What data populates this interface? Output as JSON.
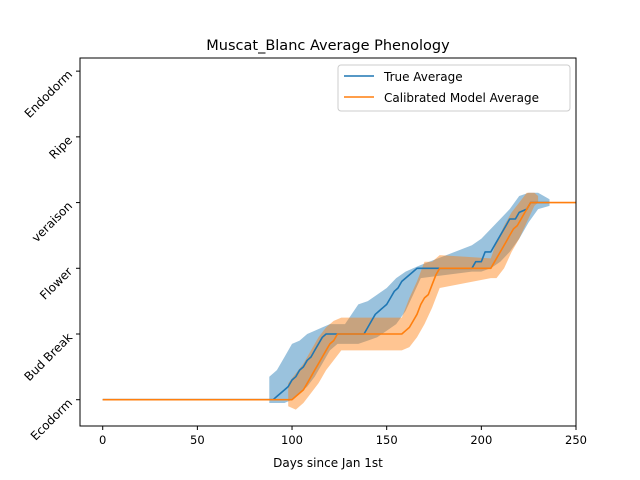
{
  "chart_data": {
    "type": "line",
    "title": "Muscat_Blanc Average Phenology",
    "xlabel": "Days since Jan 1st",
    "ylabel": "",
    "xlim": [
      -12,
      250
    ],
    "ylim": [
      -0.4,
      5.2
    ],
    "xticks": [
      0,
      50,
      100,
      150,
      200,
      250
    ],
    "yticks": [
      {
        "value": 0,
        "label": "Ecodorm"
      },
      {
        "value": 1,
        "label": "Bud Break"
      },
      {
        "value": 2,
        "label": "Flower"
      },
      {
        "value": 3,
        "label": "veraison"
      },
      {
        "value": 4,
        "label": "Ripe"
      },
      {
        "value": 5,
        "label": "Endodorm"
      }
    ],
    "grid": false,
    "legend": "top-right",
    "series": [
      {
        "name": "True Average",
        "color": "#1f77b4",
        "points": [
          [
            0,
            0
          ],
          [
            90,
            0
          ],
          [
            92,
            0.05
          ],
          [
            94,
            0.1
          ],
          [
            96,
            0.15
          ],
          [
            98,
            0.2
          ],
          [
            100,
            0.3
          ],
          [
            102,
            0.35
          ],
          [
            104,
            0.45
          ],
          [
            106,
            0.5
          ],
          [
            108,
            0.6
          ],
          [
            110,
            0.65
          ],
          [
            112,
            0.75
          ],
          [
            114,
            0.85
          ],
          [
            116,
            0.95
          ],
          [
            118,
            1.0
          ],
          [
            120,
            1.0
          ],
          [
            138,
            1.0
          ],
          [
            140,
            1.1
          ],
          [
            142,
            1.2
          ],
          [
            144,
            1.3
          ],
          [
            146,
            1.35
          ],
          [
            148,
            1.4
          ],
          [
            150,
            1.45
          ],
          [
            152,
            1.55
          ],
          [
            154,
            1.65
          ],
          [
            156,
            1.7
          ],
          [
            158,
            1.8
          ],
          [
            160,
            1.85
          ],
          [
            162,
            1.9
          ],
          [
            164,
            1.95
          ],
          [
            166,
            2.0
          ],
          [
            195,
            2.0
          ],
          [
            197,
            2.1
          ],
          [
            200,
            2.1
          ],
          [
            202,
            2.25
          ],
          [
            205,
            2.25
          ],
          [
            207,
            2.35
          ],
          [
            209,
            2.45
          ],
          [
            211,
            2.55
          ],
          [
            213,
            2.65
          ],
          [
            215,
            2.75
          ],
          [
            218,
            2.75
          ],
          [
            220,
            2.85
          ],
          [
            224,
            2.9
          ],
          [
            226,
            3.0
          ],
          [
            236,
            3.0
          ]
        ],
        "band": {
          "lower": [
            [
              88,
              -0.05
            ],
            [
              92,
              -0.05
            ],
            [
              96,
              -0.05
            ],
            [
              100,
              0.0
            ],
            [
              104,
              0.1
            ],
            [
              108,
              0.2
            ],
            [
              112,
              0.35
            ],
            [
              116,
              0.55
            ],
            [
              120,
              0.75
            ],
            [
              124,
              0.85
            ],
            [
              128,
              0.85
            ],
            [
              135,
              0.85
            ],
            [
              140,
              0.9
            ],
            [
              145,
              0.95
            ],
            [
              150,
              1.05
            ],
            [
              155,
              1.15
            ],
            [
              160,
              1.35
            ],
            [
              164,
              1.6
            ],
            [
              168,
              1.85
            ],
            [
              195,
              1.95
            ],
            [
              200,
              1.95
            ],
            [
              205,
              2.0
            ],
            [
              210,
              2.1
            ],
            [
              215,
              2.25
            ],
            [
              220,
              2.45
            ],
            [
              225,
              2.7
            ],
            [
              230,
              2.9
            ],
            [
              236,
              2.95
            ]
          ],
          "upper": [
            [
              88,
              0.35
            ],
            [
              92,
              0.45
            ],
            [
              96,
              0.65
            ],
            [
              100,
              0.85
            ],
            [
              104,
              0.9
            ],
            [
              108,
              1.0
            ],
            [
              112,
              1.05
            ],
            [
              116,
              1.1
            ],
            [
              120,
              1.15
            ],
            [
              124,
              1.15
            ],
            [
              128,
              1.15
            ],
            [
              135,
              1.45
            ],
            [
              140,
              1.5
            ],
            [
              145,
              1.6
            ],
            [
              150,
              1.7
            ],
            [
              155,
              1.85
            ],
            [
              160,
              1.95
            ],
            [
              164,
              2.0
            ],
            [
              168,
              2.05
            ],
            [
              195,
              2.35
            ],
            [
              200,
              2.45
            ],
            [
              205,
              2.6
            ],
            [
              210,
              2.75
            ],
            [
              215,
              2.9
            ],
            [
              220,
              3.1
            ],
            [
              225,
              3.15
            ],
            [
              230,
              3.15
            ],
            [
              236,
              3.05
            ]
          ]
        }
      },
      {
        "name": "Calibrated Model Average",
        "color": "#ff7f0e",
        "points": [
          [
            0,
            0
          ],
          [
            100,
            0
          ],
          [
            102,
            0.05
          ],
          [
            104,
            0.1
          ],
          [
            106,
            0.15
          ],
          [
            108,
            0.25
          ],
          [
            110,
            0.35
          ],
          [
            112,
            0.45
          ],
          [
            114,
            0.55
          ],
          [
            116,
            0.65
          ],
          [
            118,
            0.75
          ],
          [
            120,
            0.85
          ],
          [
            122,
            0.9
          ],
          [
            124,
            1.0
          ],
          [
            150,
            1.0
          ],
          [
            158,
            1.0
          ],
          [
            160,
            1.05
          ],
          [
            162,
            1.1
          ],
          [
            164,
            1.2
          ],
          [
            166,
            1.3
          ],
          [
            168,
            1.45
          ],
          [
            170,
            1.55
          ],
          [
            172,
            1.6
          ],
          [
            174,
            1.75
          ],
          [
            176,
            1.9
          ],
          [
            178,
            2.0
          ],
          [
            205,
            2.0
          ],
          [
            207,
            2.1
          ],
          [
            209,
            2.2
          ],
          [
            211,
            2.3
          ],
          [
            213,
            2.4
          ],
          [
            215,
            2.5
          ],
          [
            217,
            2.6
          ],
          [
            219,
            2.65
          ],
          [
            221,
            2.75
          ],
          [
            223,
            2.85
          ],
          [
            226,
            3.0
          ],
          [
            250,
            3.0
          ]
        ],
        "band": {
          "lower": [
            [
              98,
              -0.1
            ],
            [
              102,
              -0.15
            ],
            [
              106,
              -0.05
            ],
            [
              110,
              0.1
            ],
            [
              114,
              0.25
            ],
            [
              118,
              0.45
            ],
            [
              122,
              0.6
            ],
            [
              126,
              0.75
            ],
            [
              150,
              0.75
            ],
            [
              158,
              0.75
            ],
            [
              162,
              0.8
            ],
            [
              166,
              0.95
            ],
            [
              170,
              1.15
            ],
            [
              174,
              1.4
            ],
            [
              178,
              1.7
            ],
            [
              205,
              1.85
            ],
            [
              208,
              1.85
            ],
            [
              212,
              2.0
            ],
            [
              216,
              2.25
            ],
            [
              220,
              2.45
            ],
            [
              224,
              2.7
            ],
            [
              228,
              2.95
            ],
            [
              230,
              3.0
            ]
          ],
          "upper": [
            [
              98,
              0.25
            ],
            [
              102,
              0.4
            ],
            [
              106,
              0.55
            ],
            [
              110,
              0.75
            ],
            [
              114,
              0.95
            ],
            [
              118,
              1.1
            ],
            [
              122,
              1.2
            ],
            [
              126,
              1.25
            ],
            [
              150,
              1.25
            ],
            [
              158,
              1.25
            ],
            [
              162,
              1.55
            ],
            [
              166,
              1.8
            ],
            [
              170,
              2.1
            ],
            [
              174,
              2.1
            ],
            [
              178,
              2.2
            ],
            [
              205,
              2.15
            ],
            [
              208,
              2.4
            ],
            [
              212,
              2.65
            ],
            [
              216,
              2.85
            ],
            [
              220,
              3.0
            ],
            [
              224,
              3.15
            ],
            [
              228,
              3.15
            ],
            [
              230,
              3.1
            ]
          ]
        }
      }
    ]
  }
}
